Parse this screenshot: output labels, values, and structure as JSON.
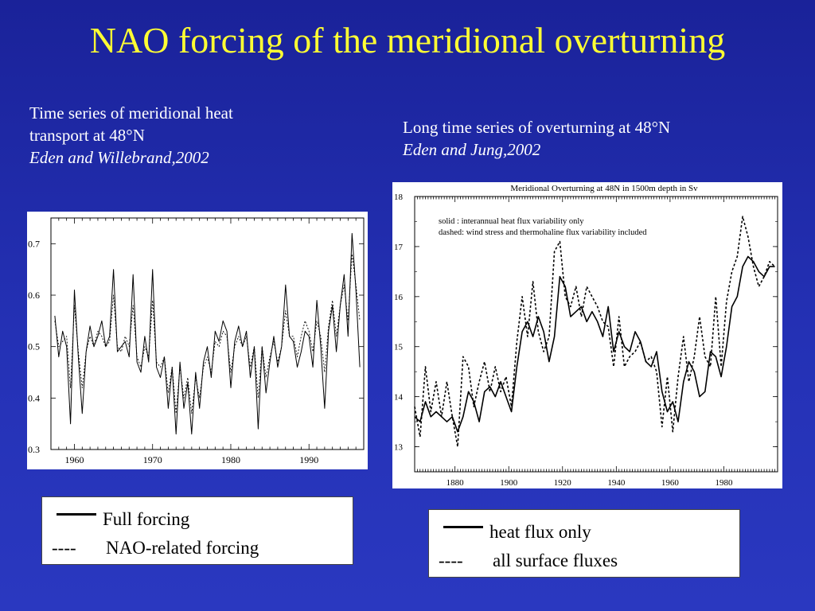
{
  "slide": {
    "title": "NAO forcing of the meridional overturning",
    "left_caption": {
      "line1": "Time series of meridional heat",
      "line2": "transport at 48°N",
      "citation": "Eden and Willebrand,2002"
    },
    "right_caption": {
      "line1": "Long time series of overturning at 48°N",
      "citation": "Eden and Jung,2002"
    },
    "left_legend": {
      "solid_symbol": "—",
      "solid_label": "Full forcing",
      "dashed_symbol": "----",
      "dashed_label": "NAO-related forcing"
    },
    "right_legend": {
      "solid_symbol": "—",
      "solid_label": "heat flux only",
      "dashed_symbol": "----",
      "dashed_label": "all surface fluxes"
    }
  },
  "chart_data": [
    {
      "type": "line",
      "title": "",
      "xlabel": "",
      "ylabel": "",
      "xlim": [
        1957,
        1997
      ],
      "ylim": [
        0.3,
        0.75
      ],
      "xticks": [
        1960,
        1970,
        1980,
        1990
      ],
      "yticks": [
        0.3,
        0.4,
        0.5,
        0.6,
        0.7
      ],
      "series": [
        {
          "name": "Full forcing",
          "style": "solid",
          "x": [
            1957.5,
            1958,
            1958.5,
            1959,
            1959.5,
            1960,
            1960.5,
            1961,
            1961.5,
            1962,
            1962.5,
            1963,
            1963.5,
            1964,
            1964.5,
            1965,
            1965.5,
            1966,
            1966.5,
            1967,
            1967.5,
            1968,
            1968.5,
            1969,
            1969.5,
            1970,
            1970.5,
            1971,
            1971.5,
            1972,
            1972.5,
            1973,
            1973.5,
            1974,
            1974.5,
            1975,
            1975.5,
            1976,
            1976.5,
            1977,
            1977.5,
            1978,
            1978.5,
            1979,
            1979.5,
            1980,
            1980.5,
            1981,
            1981.5,
            1982,
            1982.5,
            1983,
            1983.5,
            1984,
            1984.5,
            1985,
            1985.5,
            1986,
            1986.5,
            1987,
            1987.5,
            1988,
            1988.5,
            1989,
            1989.5,
            1990,
            1990.5,
            1991,
            1991.5,
            1992,
            1992.5,
            1993,
            1993.5,
            1994,
            1994.5,
            1995,
            1995.5,
            1996,
            1996.5
          ],
          "values": [
            0.56,
            0.48,
            0.53,
            0.5,
            0.35,
            0.61,
            0.48,
            0.37,
            0.49,
            0.54,
            0.5,
            0.52,
            0.55,
            0.5,
            0.52,
            0.65,
            0.49,
            0.5,
            0.51,
            0.48,
            0.64,
            0.47,
            0.45,
            0.52,
            0.47,
            0.65,
            0.46,
            0.44,
            0.48,
            0.38,
            0.46,
            0.33,
            0.47,
            0.38,
            0.43,
            0.33,
            0.45,
            0.38,
            0.47,
            0.5,
            0.44,
            0.53,
            0.51,
            0.55,
            0.53,
            0.42,
            0.51,
            0.54,
            0.5,
            0.53,
            0.44,
            0.5,
            0.34,
            0.5,
            0.41,
            0.47,
            0.52,
            0.46,
            0.5,
            0.62,
            0.52,
            0.51,
            0.46,
            0.49,
            0.53,
            0.52,
            0.46,
            0.59,
            0.5,
            0.38,
            0.53,
            0.58,
            0.49,
            0.58,
            0.64,
            0.52,
            0.72,
            0.61,
            0.46
          ]
        },
        {
          "name": "NAO-related forcing",
          "style": "dashed",
          "x": [
            1957.5,
            1958,
            1958.5,
            1959,
            1959.5,
            1960,
            1960.5,
            1961,
            1961.5,
            1962,
            1962.5,
            1963,
            1963.5,
            1964,
            1964.5,
            1965,
            1965.5,
            1966,
            1966.5,
            1967,
            1967.5,
            1968,
            1968.5,
            1969,
            1969.5,
            1970,
            1970.5,
            1971,
            1971.5,
            1972,
            1972.5,
            1973,
            1973.5,
            1974,
            1974.5,
            1975,
            1975.5,
            1976,
            1976.5,
            1977,
            1977.5,
            1978,
            1978.5,
            1979,
            1979.5,
            1980,
            1980.5,
            1981,
            1981.5,
            1982,
            1982.5,
            1983,
            1983.5,
            1984,
            1984.5,
            1985,
            1985.5,
            1986,
            1986.5,
            1987,
            1987.5,
            1988,
            1988.5,
            1989,
            1989.5,
            1990,
            1990.5,
            1991,
            1991.5,
            1992,
            1992.5,
            1993,
            1993.5,
            1994,
            1994.5,
            1995,
            1995.5,
            1996,
            1996.5
          ],
          "values": [
            0.55,
            0.5,
            0.51,
            0.52,
            0.42,
            0.58,
            0.49,
            0.42,
            0.49,
            0.52,
            0.5,
            0.53,
            0.52,
            0.5,
            0.51,
            0.6,
            0.5,
            0.49,
            0.52,
            0.5,
            0.58,
            0.48,
            0.46,
            0.5,
            0.48,
            0.59,
            0.47,
            0.46,
            0.48,
            0.41,
            0.46,
            0.37,
            0.46,
            0.4,
            0.44,
            0.37,
            0.44,
            0.4,
            0.46,
            0.48,
            0.45,
            0.51,
            0.5,
            0.53,
            0.52,
            0.45,
            0.5,
            0.52,
            0.5,
            0.52,
            0.46,
            0.5,
            0.4,
            0.5,
            0.44,
            0.48,
            0.51,
            0.47,
            0.5,
            0.57,
            0.52,
            0.52,
            0.48,
            0.52,
            0.55,
            0.53,
            0.49,
            0.55,
            0.52,
            0.45,
            0.54,
            0.59,
            0.52,
            0.58,
            0.62,
            0.55,
            0.68,
            0.62,
            0.55
          ]
        }
      ]
    },
    {
      "type": "line",
      "title": "Meridional Overturning at 48N in 1500m depth in Sv",
      "xlabel": "",
      "ylabel": "",
      "xlim": [
        1865,
        2000
      ],
      "ylim": [
        12.5,
        18
      ],
      "xticks": [
        1880,
        1900,
        1920,
        1940,
        1960,
        1980
      ],
      "yticks": [
        13,
        14,
        15,
        16,
        17,
        18
      ],
      "annotations": [
        "solid    :  interannual heat flux variability only",
        "dashed: wind stress and thermohaline flux variability included"
      ],
      "series": [
        {
          "name": "solid",
          "style": "solid",
          "x": [
            1865,
            1867,
            1869,
            1871,
            1873,
            1875,
            1877,
            1879,
            1881,
            1883,
            1885,
            1887,
            1889,
            1891,
            1893,
            1895,
            1897,
            1899,
            1901,
            1903,
            1905,
            1907,
            1909,
            1911,
            1913,
            1915,
            1917,
            1919,
            1921,
            1923,
            1925,
            1927,
            1929,
            1931,
            1933,
            1935,
            1937,
            1939,
            1941,
            1943,
            1945,
            1947,
            1949,
            1951,
            1953,
            1955,
            1957,
            1959,
            1961,
            1963,
            1965,
            1967,
            1969,
            1971,
            1973,
            1975,
            1977,
            1979,
            1981,
            1983,
            1985,
            1987,
            1989,
            1991,
            1993,
            1995,
            1997,
            1999
          ],
          "values": [
            13.6,
            13.5,
            13.9,
            13.6,
            13.7,
            13.6,
            13.5,
            13.6,
            13.3,
            13.6,
            14.1,
            13.9,
            13.5,
            14.1,
            14.2,
            14.0,
            14.3,
            14.0,
            13.7,
            14.6,
            15.3,
            15.5,
            15.2,
            15.6,
            15.3,
            14.7,
            15.2,
            16.4,
            16.2,
            15.6,
            15.7,
            15.8,
            15.5,
            15.7,
            15.5,
            15.2,
            15.8,
            14.9,
            15.3,
            15.0,
            14.9,
            15.3,
            15.1,
            14.7,
            14.6,
            14.9,
            14.1,
            13.7,
            13.9,
            13.5,
            14.3,
            14.7,
            14.5,
            14.0,
            14.1,
            14.9,
            14.8,
            14.4,
            15.0,
            15.8,
            16.0,
            16.6,
            16.8,
            16.7,
            16.5,
            16.4,
            16.6,
            16.6
          ]
        },
        {
          "name": "dashed",
          "style": "dashed",
          "x": [
            1865,
            1867,
            1869,
            1871,
            1873,
            1875,
            1877,
            1879,
            1881,
            1883,
            1885,
            1887,
            1889,
            1891,
            1893,
            1895,
            1897,
            1899,
            1901,
            1903,
            1905,
            1907,
            1909,
            1911,
            1913,
            1915,
            1917,
            1919,
            1921,
            1923,
            1925,
            1927,
            1929,
            1931,
            1933,
            1935,
            1937,
            1939,
            1941,
            1943,
            1945,
            1947,
            1949,
            1951,
            1953,
            1955,
            1957,
            1959,
            1961,
            1963,
            1965,
            1967,
            1969,
            1971,
            1973,
            1975,
            1977,
            1979,
            1981,
            1983,
            1985,
            1987,
            1989,
            1991,
            1993,
            1995,
            1997,
            1999
          ],
          "values": [
            13.8,
            13.2,
            14.6,
            13.7,
            14.3,
            13.6,
            14.3,
            13.6,
            13.0,
            14.8,
            14.6,
            13.8,
            14.3,
            14.7,
            14.1,
            14.6,
            14.1,
            14.4,
            13.8,
            15.1,
            16.0,
            15.2,
            16.3,
            15.3,
            14.9,
            15.2,
            16.9,
            17.1,
            16.0,
            15.8,
            16.2,
            15.6,
            16.2,
            16.0,
            15.8,
            15.5,
            15.4,
            14.6,
            15.6,
            14.6,
            14.8,
            14.9,
            15.1,
            14.7,
            14.8,
            14.5,
            13.4,
            14.4,
            13.3,
            14.4,
            15.2,
            14.3,
            14.8,
            15.6,
            14.8,
            14.6,
            16.0,
            14.6,
            15.9,
            16.5,
            16.8,
            17.6,
            17.2,
            16.6,
            16.2,
            16.4,
            16.7,
            16.6
          ]
        }
      ]
    }
  ]
}
